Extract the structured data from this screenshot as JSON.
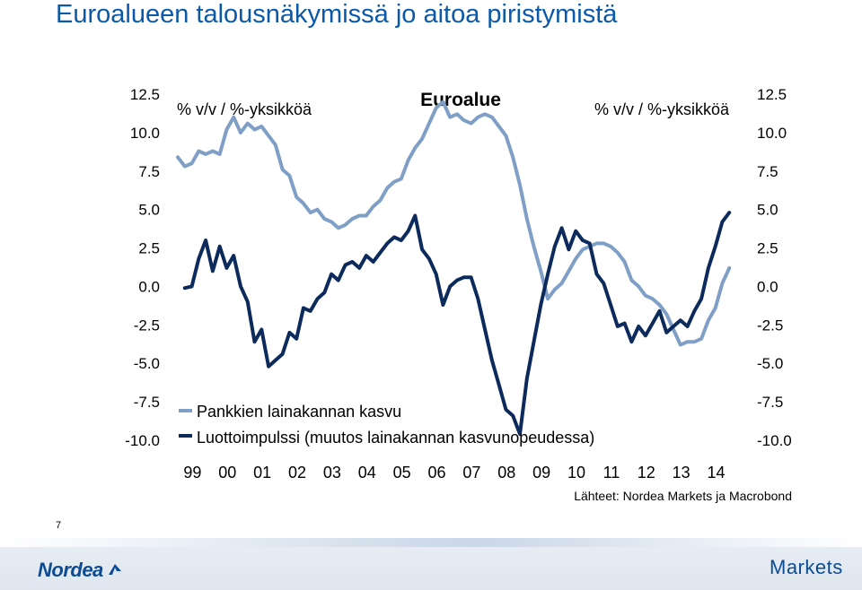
{
  "slide": {
    "title": "Euroalueen talousnäkymissä jo aitoa piristymistä",
    "page_number": "7",
    "footer_logo": "Nordea",
    "footer_right": "Markets"
  },
  "colors": {
    "title": "#0b59a8",
    "series_light": "#7f9fc6",
    "series_dark": "#0c2a5b",
    "brand": "#0b4b93"
  },
  "chart_data": {
    "type": "line",
    "title": "Euroalue",
    "left_unit": "% v/v / %-yksikköä",
    "right_unit": "% v/v / %-yksikköä",
    "source": "Lähteet: Nordea Markets ja Macrobond",
    "ylim": [
      -10,
      12.5
    ],
    "yticks": [
      "12.5",
      "10.0",
      "7.5",
      "5.0",
      "2.5",
      "0.0",
      "-2.5",
      "-5.0",
      "-7.5",
      "-10.0"
    ],
    "yticks_right": [
      "12.5",
      "10.0",
      "7.5",
      "5.0",
      "2.5",
      "0.0",
      "-2.5",
      "-5.0",
      "-7.5",
      "-10.0"
    ],
    "ytick_values": [
      12.5,
      10,
      7.5,
      5,
      2.5,
      0,
      -2.5,
      -5,
      -7.5,
      -10
    ],
    "xticks": [
      "99",
      "00",
      "01",
      "02",
      "03",
      "04",
      "05",
      "06",
      "07",
      "08",
      "09",
      "10",
      "11",
      "12",
      "13",
      "14"
    ],
    "xlim": [
      1999.0,
      2015.0
    ],
    "grid": false,
    "legend": "bottom-left",
    "series": [
      {
        "name": "Pankkien lainakannan kasvu",
        "color": "#7f9fc6",
        "points": [
          [
            1999.0,
            8.4
          ],
          [
            1999.2,
            7.8
          ],
          [
            1999.4,
            8.0
          ],
          [
            1999.6,
            8.8
          ],
          [
            1999.8,
            8.6
          ],
          [
            2000.0,
            8.8
          ],
          [
            2000.2,
            8.6
          ],
          [
            2000.4,
            10.2
          ],
          [
            2000.6,
            11.0
          ],
          [
            2000.8,
            10.0
          ],
          [
            2001.0,
            10.6
          ],
          [
            2001.2,
            10.2
          ],
          [
            2001.4,
            10.4
          ],
          [
            2001.6,
            9.8
          ],
          [
            2001.8,
            9.2
          ],
          [
            2002.0,
            7.6
          ],
          [
            2002.2,
            7.2
          ],
          [
            2002.4,
            5.8
          ],
          [
            2002.6,
            5.4
          ],
          [
            2002.8,
            4.8
          ],
          [
            2003.0,
            5.0
          ],
          [
            2003.2,
            4.4
          ],
          [
            2003.4,
            4.2
          ],
          [
            2003.6,
            3.8
          ],
          [
            2003.8,
            4.0
          ],
          [
            2004.0,
            4.4
          ],
          [
            2004.2,
            4.6
          ],
          [
            2004.4,
            4.6
          ],
          [
            2004.6,
            5.2
          ],
          [
            2004.8,
            5.6
          ],
          [
            2005.0,
            6.4
          ],
          [
            2005.2,
            6.8
          ],
          [
            2005.4,
            7.0
          ],
          [
            2005.6,
            8.2
          ],
          [
            2005.8,
            9.0
          ],
          [
            2006.0,
            9.6
          ],
          [
            2006.2,
            10.6
          ],
          [
            2006.4,
            11.6
          ],
          [
            2006.6,
            12.0
          ],
          [
            2006.8,
            11.0
          ],
          [
            2007.0,
            11.2
          ],
          [
            2007.2,
            10.8
          ],
          [
            2007.4,
            10.6
          ],
          [
            2007.6,
            11.0
          ],
          [
            2007.8,
            11.2
          ],
          [
            2008.0,
            11.0
          ],
          [
            2008.2,
            10.4
          ],
          [
            2008.4,
            9.8
          ],
          [
            2008.6,
            8.4
          ],
          [
            2008.8,
            6.6
          ],
          [
            2009.0,
            4.4
          ],
          [
            2009.2,
            2.6
          ],
          [
            2009.4,
            1.0
          ],
          [
            2009.6,
            -0.8
          ],
          [
            2009.8,
            -0.2
          ],
          [
            2010.0,
            0.2
          ],
          [
            2010.2,
            1.0
          ],
          [
            2010.4,
            1.8
          ],
          [
            2010.6,
            2.4
          ],
          [
            2010.8,
            2.6
          ],
          [
            2011.0,
            2.8
          ],
          [
            2011.2,
            2.8
          ],
          [
            2011.4,
            2.6
          ],
          [
            2011.6,
            2.2
          ],
          [
            2011.8,
            1.6
          ],
          [
            2012.0,
            0.4
          ],
          [
            2012.2,
            0.0
          ],
          [
            2012.4,
            -0.6
          ],
          [
            2012.6,
            -0.8
          ],
          [
            2012.8,
            -1.2
          ],
          [
            2013.0,
            -1.8
          ],
          [
            2013.2,
            -2.8
          ],
          [
            2013.4,
            -3.8
          ],
          [
            2013.6,
            -3.6
          ],
          [
            2013.8,
            -3.6
          ],
          [
            2014.0,
            -3.4
          ],
          [
            2014.2,
            -2.2
          ],
          [
            2014.4,
            -1.4
          ],
          [
            2014.6,
            0.2
          ],
          [
            2014.8,
            1.2
          ]
        ]
      },
      {
        "name": "Luottoimpulssi (muutos lainakannan kasvunopeudessa)",
        "color": "#0c2a5b",
        "points": [
          [
            1999.2,
            -0.1
          ],
          [
            1999.4,
            0.0
          ],
          [
            1999.6,
            1.8
          ],
          [
            1999.8,
            3.0
          ],
          [
            2000.0,
            1.0
          ],
          [
            2000.2,
            2.6
          ],
          [
            2000.4,
            1.2
          ],
          [
            2000.6,
            2.0
          ],
          [
            2000.8,
            0.0
          ],
          [
            2001.0,
            -1.0
          ],
          [
            2001.2,
            -3.6
          ],
          [
            2001.4,
            -2.8
          ],
          [
            2001.6,
            -5.2
          ],
          [
            2001.8,
            -4.8
          ],
          [
            2002.0,
            -4.4
          ],
          [
            2002.2,
            -3.0
          ],
          [
            2002.4,
            -3.4
          ],
          [
            2002.6,
            -1.4
          ],
          [
            2002.8,
            -1.6
          ],
          [
            2003.0,
            -0.8
          ],
          [
            2003.2,
            -0.4
          ],
          [
            2003.4,
            0.8
          ],
          [
            2003.6,
            0.4
          ],
          [
            2003.8,
            1.4
          ],
          [
            2004.0,
            1.6
          ],
          [
            2004.2,
            1.2
          ],
          [
            2004.4,
            2.0
          ],
          [
            2004.6,
            1.6
          ],
          [
            2004.8,
            2.2
          ],
          [
            2005.0,
            2.8
          ],
          [
            2005.2,
            3.2
          ],
          [
            2005.4,
            3.0
          ],
          [
            2005.6,
            3.6
          ],
          [
            2005.8,
            4.6
          ],
          [
            2006.0,
            2.4
          ],
          [
            2006.2,
            1.8
          ],
          [
            2006.4,
            0.8
          ],
          [
            2006.6,
            -1.2
          ],
          [
            2006.8,
            0.0
          ],
          [
            2007.0,
            0.4
          ],
          [
            2007.2,
            0.6
          ],
          [
            2007.4,
            0.6
          ],
          [
            2007.6,
            -0.8
          ],
          [
            2007.8,
            -2.8
          ],
          [
            2008.0,
            -4.8
          ],
          [
            2008.2,
            -6.4
          ],
          [
            2008.4,
            -8.0
          ],
          [
            2008.6,
            -8.4
          ],
          [
            2008.8,
            -9.6
          ],
          [
            2009.0,
            -6.0
          ],
          [
            2009.2,
            -3.6
          ],
          [
            2009.4,
            -1.2
          ],
          [
            2009.6,
            0.8
          ],
          [
            2009.8,
            2.6
          ],
          [
            2010.0,
            3.8
          ],
          [
            2010.2,
            2.4
          ],
          [
            2010.4,
            3.6
          ],
          [
            2010.6,
            3.0
          ],
          [
            2010.8,
            2.8
          ],
          [
            2011.0,
            0.8
          ],
          [
            2011.2,
            0.2
          ],
          [
            2011.4,
            -1.2
          ],
          [
            2011.6,
            -2.6
          ],
          [
            2011.8,
            -2.4
          ],
          [
            2012.0,
            -3.6
          ],
          [
            2012.2,
            -2.6
          ],
          [
            2012.4,
            -3.2
          ],
          [
            2012.6,
            -2.4
          ],
          [
            2012.8,
            -1.6
          ],
          [
            2013.0,
            -3.0
          ],
          [
            2013.2,
            -2.6
          ],
          [
            2013.4,
            -2.2
          ],
          [
            2013.6,
            -2.6
          ],
          [
            2013.8,
            -1.6
          ],
          [
            2014.0,
            -0.8
          ],
          [
            2014.2,
            1.2
          ],
          [
            2014.4,
            2.6
          ],
          [
            2014.6,
            4.2
          ],
          [
            2014.8,
            4.8
          ]
        ]
      }
    ]
  }
}
